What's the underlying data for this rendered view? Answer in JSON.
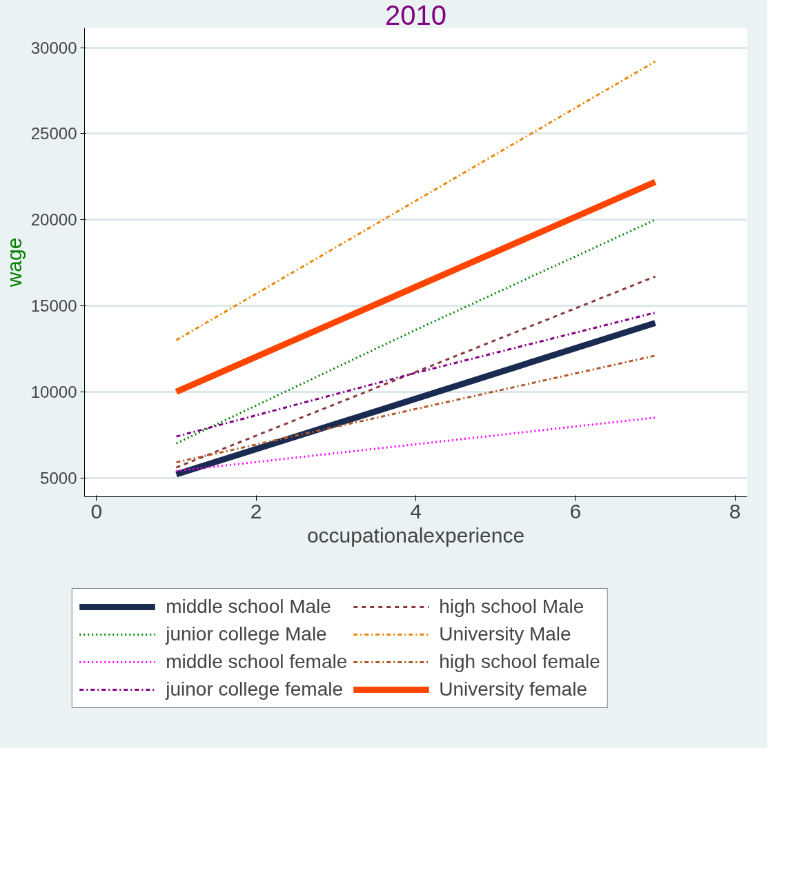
{
  "chart_data": {
    "type": "line",
    "title": "2010",
    "xlabel": "occupationalexperience",
    "ylabel": "wage",
    "xlim": [
      -0.15,
      8.15
    ],
    "xticks": [
      0,
      2,
      4,
      6,
      8
    ],
    "ylim": [
      3900,
      31150
    ],
    "yticks": [
      5000,
      10000,
      15000,
      20000,
      25000,
      30000
    ],
    "grid": "y",
    "legend": "bottom",
    "marker": "none",
    "series": [
      {
        "name": "middle school Male",
        "color": "#1a2a50",
        "line_style": "solid",
        "x": [
          1,
          7
        ],
        "values": [
          5200,
          14000
        ]
      },
      {
        "name": "high school Male",
        "color": "#8b3a3a",
        "line_style": "dashed",
        "x": [
          1,
          7
        ],
        "values": [
          5600,
          16700
        ]
      },
      {
        "name": "junior college Male",
        "color": "#008000",
        "line_style": "dotted",
        "x": [
          1,
          4,
          7
        ],
        "values": [
          7000,
          13600,
          20000
        ]
      },
      {
        "name": "University Male",
        "color": "#e8880b",
        "line_style": "dashdot",
        "x": [
          1,
          7
        ],
        "values": [
          13000,
          29200
        ]
      },
      {
        "name": "middle school female",
        "color": "#ff00ff",
        "line_style": "dotted",
        "x": [
          1,
          7
        ],
        "values": [
          5400,
          8500
        ]
      },
      {
        "name": "high school female",
        "color": "#b05a28",
        "line_style": "dashdot",
        "x": [
          1,
          7
        ],
        "values": [
          5900,
          12100
        ]
      },
      {
        "name": "juinor college female",
        "color": "#800080",
        "line_style": "dashdot",
        "x": [
          1,
          4,
          7
        ],
        "values": [
          7400,
          11100,
          14600
        ]
      },
      {
        "name": "University female",
        "color": "#ff4500",
        "line_style": "solid",
        "x": [
          1,
          7
        ],
        "values": [
          10000,
          22200
        ]
      }
    ]
  }
}
